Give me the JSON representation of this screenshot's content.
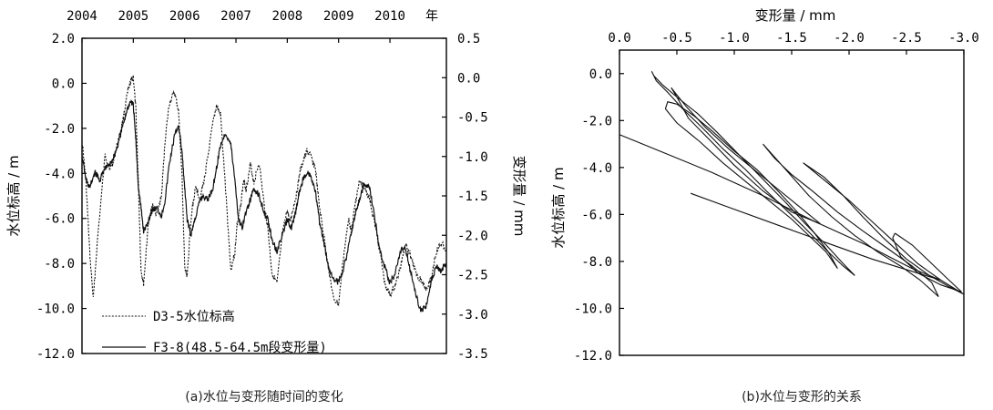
{
  "chart_data": [
    {
      "type": "line",
      "caption": "(a)水位与变形随时间的变化",
      "top_axis": {
        "ticks": [
          "2004",
          "2005",
          "2006",
          "2007",
          "2008",
          "2009",
          "2010"
        ],
        "unit": "年"
      },
      "left_axis": {
        "label": "水位标高 / m",
        "range": [
          -12,
          2
        ],
        "ticks": [
          "2.0",
          "0.0",
          "-2.0",
          "-4.0",
          "-6.0",
          "-8.0",
          "-10.0",
          "-12.0"
        ]
      },
      "right_axis": {
        "label": "变形量 / mm",
        "range": [
          -3.5,
          0.5
        ],
        "ticks": [
          "0.5",
          "0.0",
          "-0.5",
          "-1.0",
          "-1.5",
          "-2.0",
          "-2.5",
          "-3.0",
          "-3.5"
        ]
      },
      "x_range": [
        2004.0,
        2011.1
      ],
      "legend_placement": "bottom-left",
      "series": [
        {
          "name": "D3-5水位标高",
          "style": "dotted",
          "axis": "left",
          "x": [
            2004.0,
            2004.08,
            2004.15,
            2004.22,
            2004.3,
            2004.45,
            2004.55,
            2004.62,
            2004.7,
            2004.8,
            2004.88,
            2004.95,
            2005.0,
            2005.05,
            2005.1,
            2005.15,
            2005.2,
            2005.25,
            2005.3,
            2005.38,
            2005.45,
            2005.55,
            2005.62,
            2005.7,
            2005.8,
            2005.88,
            2005.95,
            2006.0,
            2006.05,
            2006.1,
            2006.15,
            2006.22,
            2006.3,
            2006.38,
            2006.45,
            2006.55,
            2006.62,
            2006.7,
            2006.8,
            2006.9,
            2006.98,
            2007.02,
            2007.08,
            2007.15,
            2007.2,
            2007.28,
            2007.35,
            2007.45,
            2007.55,
            2007.62,
            2007.7,
            2007.8,
            2007.9,
            2008.0,
            2008.05,
            2008.1,
            2008.18,
            2008.25,
            2008.32,
            2008.38,
            2008.45,
            2008.55,
            2008.62,
            2008.7,
            2008.8,
            2008.9,
            2009.0,
            2009.1,
            2009.2,
            2009.25,
            2009.32,
            2009.4,
            2009.5,
            2009.6,
            2009.7,
            2009.8,
            2009.9,
            2010.0,
            2010.1,
            2010.2,
            2010.3,
            2010.4,
            2010.5,
            2010.6,
            2010.7,
            2010.8,
            2010.9,
            2011.0,
            2011.1
          ],
          "values": [
            -2.5,
            -4.5,
            -7.5,
            -9.6,
            -7.0,
            -3.2,
            -3.8,
            -3.4,
            -2.6,
            -1.6,
            -0.5,
            0.1,
            0.3,
            -1.2,
            -4.5,
            -8.3,
            -8.9,
            -7.5,
            -6.0,
            -5.4,
            -5.9,
            -5.0,
            -2.5,
            -0.9,
            -0.4,
            -1.2,
            -4.2,
            -8.1,
            -8.6,
            -6.8,
            -5.5,
            -4.6,
            -5.1,
            -4.3,
            -3.3,
            -1.8,
            -1.0,
            -1.4,
            -4.8,
            -8.3,
            -7.5,
            -6.3,
            -5.6,
            -4.3,
            -4.7,
            -3.6,
            -4.4,
            -3.5,
            -5.4,
            -6.4,
            -8.4,
            -8.9,
            -6.8,
            -5.6,
            -6.2,
            -5.7,
            -4.9,
            -3.9,
            -3.4,
            -3.0,
            -3.2,
            -3.8,
            -5.4,
            -6.6,
            -8.1,
            -9.6,
            -9.8,
            -7.6,
            -6.0,
            -6.6,
            -5.4,
            -4.4,
            -4.6,
            -5.1,
            -6.2,
            -7.4,
            -8.9,
            -9.4,
            -9.0,
            -8.2,
            -7.1,
            -7.6,
            -8.4,
            -8.7,
            -9.1,
            -8.7,
            -7.5,
            -7.1,
            -7.4
          ]
        },
        {
          "name": "F3-8(48.5-64.5m段变形量)",
          "style": "solid",
          "axis": "right",
          "x": [
            2004.0,
            2004.08,
            2004.15,
            2004.25,
            2004.35,
            2004.45,
            2004.55,
            2004.62,
            2004.7,
            2004.8,
            2004.88,
            2004.95,
            2005.0,
            2005.05,
            2005.1,
            2005.15,
            2005.2,
            2005.28,
            2005.35,
            2005.45,
            2005.55,
            2005.62,
            2005.7,
            2005.8,
            2005.88,
            2005.95,
            2006.0,
            2006.05,
            2006.12,
            2006.2,
            2006.28,
            2006.35,
            2006.45,
            2006.55,
            2006.62,
            2006.7,
            2006.8,
            2006.9,
            2006.98,
            2007.05,
            2007.12,
            2007.2,
            2007.28,
            2007.35,
            2007.45,
            2007.55,
            2007.62,
            2007.7,
            2007.8,
            2007.9,
            2008.0,
            2008.08,
            2008.15,
            2008.22,
            2008.3,
            2008.38,
            2008.45,
            2008.55,
            2008.62,
            2008.7,
            2008.8,
            2008.9,
            2009.0,
            2009.1,
            2009.18,
            2009.25,
            2009.32,
            2009.4,
            2009.5,
            2009.6,
            2009.7,
            2009.8,
            2009.9,
            2010.0,
            2010.1,
            2010.2,
            2010.3,
            2010.4,
            2010.5,
            2010.6,
            2010.7,
            2010.8,
            2010.9,
            2011.0,
            2011.1
          ],
          "values": [
            -1.0,
            -1.3,
            -1.4,
            -1.2,
            -1.3,
            -1.15,
            -1.1,
            -1.0,
            -0.85,
            -0.6,
            -0.4,
            -0.3,
            -0.35,
            -0.8,
            -1.4,
            -1.65,
            -1.95,
            -1.85,
            -1.7,
            -1.65,
            -1.75,
            -1.55,
            -1.1,
            -0.75,
            -0.6,
            -0.95,
            -1.4,
            -1.8,
            -2.0,
            -1.8,
            -1.6,
            -1.5,
            -1.55,
            -1.4,
            -1.15,
            -0.85,
            -0.7,
            -0.85,
            -1.3,
            -1.8,
            -1.9,
            -1.7,
            -1.55,
            -1.4,
            -1.5,
            -1.7,
            -1.8,
            -2.05,
            -2.2,
            -2.0,
            -1.8,
            -1.9,
            -1.75,
            -1.5,
            -1.3,
            -1.2,
            -1.25,
            -1.45,
            -1.8,
            -2.05,
            -2.4,
            -2.55,
            -2.6,
            -2.4,
            -2.2,
            -1.95,
            -1.75,
            -1.55,
            -1.35,
            -1.4,
            -1.75,
            -2.2,
            -2.4,
            -2.6,
            -2.5,
            -2.2,
            -2.15,
            -2.45,
            -2.75,
            -2.95,
            -2.9,
            -2.6,
            -2.4,
            -2.45,
            -2.35
          ]
        }
      ]
    },
    {
      "type": "line",
      "caption": "(b)水位与变形的关系",
      "xlabel": "变形量 / mm",
      "ylabel": "水位标高 / m",
      "x_range": [
        0.0,
        -3.0
      ],
      "y_range": [
        -12.0,
        1.0
      ],
      "x_ticks": [
        "0.0",
        "-0.5",
        "-1.0",
        "-1.5",
        "-2.0",
        "-2.5",
        "-3.0"
      ],
      "y_ticks": [
        "0.0",
        "-2.0",
        "-4.0",
        "-6.0",
        "-8.0",
        "-10.0",
        "-12.0"
      ],
      "loops": [
        {
          "x": [
            -0.28,
            -0.32,
            -0.42,
            -0.55,
            -0.72,
            -0.9,
            -1.1,
            -1.28,
            -1.45,
            -1.6,
            -1.72,
            -1.82,
            -1.95,
            -2.05,
            -1.95,
            -1.8,
            -1.62,
            -1.45,
            -1.25,
            -1.05,
            -0.85,
            -0.68,
            -0.5,
            -0.38,
            -0.3,
            -0.28
          ],
          "y": [
            0.1,
            -0.3,
            -0.8,
            -1.5,
            -2.3,
            -3.2,
            -4.1,
            -5.0,
            -5.8,
            -6.5,
            -7.1,
            -7.6,
            -8.2,
            -8.6,
            -8.1,
            -7.3,
            -6.4,
            -5.5,
            -4.5,
            -3.5,
            -2.5,
            -1.7,
            -1.0,
            -0.5,
            -0.1,
            0.1
          ]
        },
        {
          "x": [
            -0.4,
            -0.5,
            -0.7,
            -0.9,
            -1.1,
            -1.3,
            -1.5,
            -1.65,
            -1.8,
            -1.9,
            -1.82,
            -1.7,
            -1.55,
            -1.38,
            -1.2,
            -1.0,
            -0.82,
            -0.65,
            -0.5,
            -0.42,
            -0.4
          ],
          "y": [
            -1.5,
            -2.1,
            -2.9,
            -3.8,
            -4.6,
            -5.4,
            -6.2,
            -6.9,
            -7.6,
            -8.3,
            -7.6,
            -6.8,
            -5.9,
            -5.0,
            -4.1,
            -3.3,
            -2.5,
            -1.8,
            -1.3,
            -1.2,
            -1.5
          ]
        },
        {
          "x": [
            -0.45,
            -0.58,
            -0.75,
            -0.95,
            -1.15,
            -1.35,
            -1.55,
            -1.75,
            -1.5,
            -1.25,
            -1.0,
            -0.78,
            -0.6,
            -0.5,
            -0.45
          ],
          "y": [
            -0.6,
            -1.4,
            -2.3,
            -3.2,
            -4.0,
            -4.8,
            -5.6,
            -6.4,
            -5.9,
            -5.0,
            -3.9,
            -2.8,
            -1.9,
            -1.0,
            -0.6
          ]
        },
        {
          "x": [
            -1.25,
            -1.45,
            -1.65,
            -1.85,
            -2.05,
            -2.25,
            -2.45,
            -2.62,
            -2.78,
            -2.72,
            -2.55,
            -2.35,
            -2.12,
            -1.9,
            -1.68,
            -1.5,
            -1.35,
            -1.25
          ],
          "y": [
            -3.0,
            -4.1,
            -5.2,
            -6.1,
            -6.9,
            -7.6,
            -8.2,
            -8.8,
            -9.5,
            -8.9,
            -8.2,
            -7.5,
            -6.7,
            -5.9,
            -5.0,
            -4.3,
            -3.6,
            -3.0
          ]
        },
        {
          "x": [
            -1.6,
            -1.8,
            -2.0,
            -2.2,
            -2.4,
            -2.6,
            -2.8,
            -3.0,
            -2.88,
            -2.7,
            -2.5,
            -2.3,
            -2.12,
            -1.95,
            -1.78,
            -1.6
          ],
          "y": [
            -3.8,
            -4.6,
            -5.4,
            -6.3,
            -7.2,
            -8.1,
            -8.8,
            -9.4,
            -9.1,
            -8.6,
            -7.9,
            -7.0,
            -6.1,
            -5.2,
            -4.4,
            -3.8
          ]
        },
        {
          "x": [
            -2.4,
            -2.55,
            -2.7,
            -2.85,
            -2.98,
            -2.8,
            -2.6,
            -2.45,
            -2.38,
            -2.4
          ],
          "y": [
            -6.8,
            -7.3,
            -8.0,
            -8.7,
            -9.3,
            -9.0,
            -8.5,
            -7.8,
            -7.0,
            -6.8
          ]
        },
        {
          "x": [
            0.0,
            -0.35,
            -0.8,
            -1.25,
            -1.7,
            -2.15,
            -2.55,
            -2.8,
            -2.6,
            -2.2,
            -1.8,
            -1.35,
            -0.9,
            -0.62
          ],
          "y": [
            -2.6,
            -3.3,
            -4.2,
            -5.2,
            -6.3,
            -7.3,
            -8.3,
            -8.8,
            -8.5,
            -7.9,
            -7.2,
            -6.4,
            -5.6,
            -5.1
          ]
        }
      ]
    }
  ]
}
